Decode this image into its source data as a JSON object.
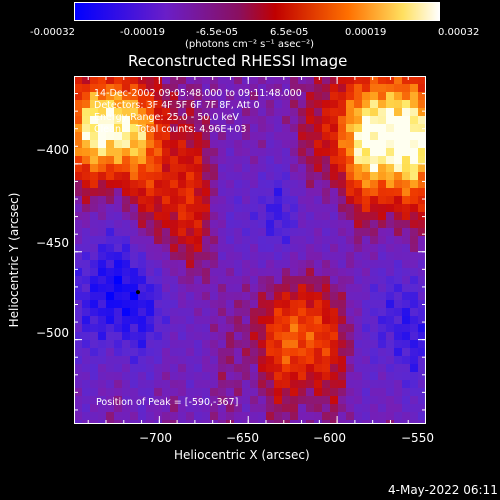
{
  "colorbar": {
    "ticks": [
      "-0.00032",
      "-0.00019",
      "-6.5e-05",
      "6.5e-05",
      "0.00019",
      "0.00032"
    ],
    "unit_label": "(photons cm⁻² s⁻¹ asec⁻²)",
    "stops": [
      "#0000ff",
      "#7020c0",
      "#c00000",
      "#ff8000",
      "#ffff80",
      "#ffffff"
    ]
  },
  "chart_data": {
    "type": "heatmap",
    "title": "Reconstructed RHESSI Image",
    "xlabel": "Heliocentric X (arcsec)",
    "ylabel": "Heliocentric Y (arcsec)",
    "xlim": [
      -748,
      -550
    ],
    "ylim": [
      -548,
      -350
    ],
    "x_ticks": [
      -700,
      -650,
      -600,
      -550
    ],
    "y_ticks": [
      -400,
      -450,
      -500
    ],
    "x_tick_labels": [
      "−700",
      "−650",
      "−600",
      "−550"
    ],
    "y_tick_labels": [
      "−400",
      "−450",
      "−500"
    ],
    "peak_position": [
      -590,
      -367
    ],
    "annotations": [
      "14-Dec-2002 09:05:48.000 to 09:11:48.000",
      "Detectors: 3F 4F 5F 6F 7F 8F, Att 0",
      "Energy Range: 25.0 - 50.0 keV",
      "Clean     Total counts: 4.96E+03"
    ],
    "peak_label": "Position of Peak = [-590,-367]"
  },
  "footer": {
    "date": "4-May-2022 06:11"
  }
}
